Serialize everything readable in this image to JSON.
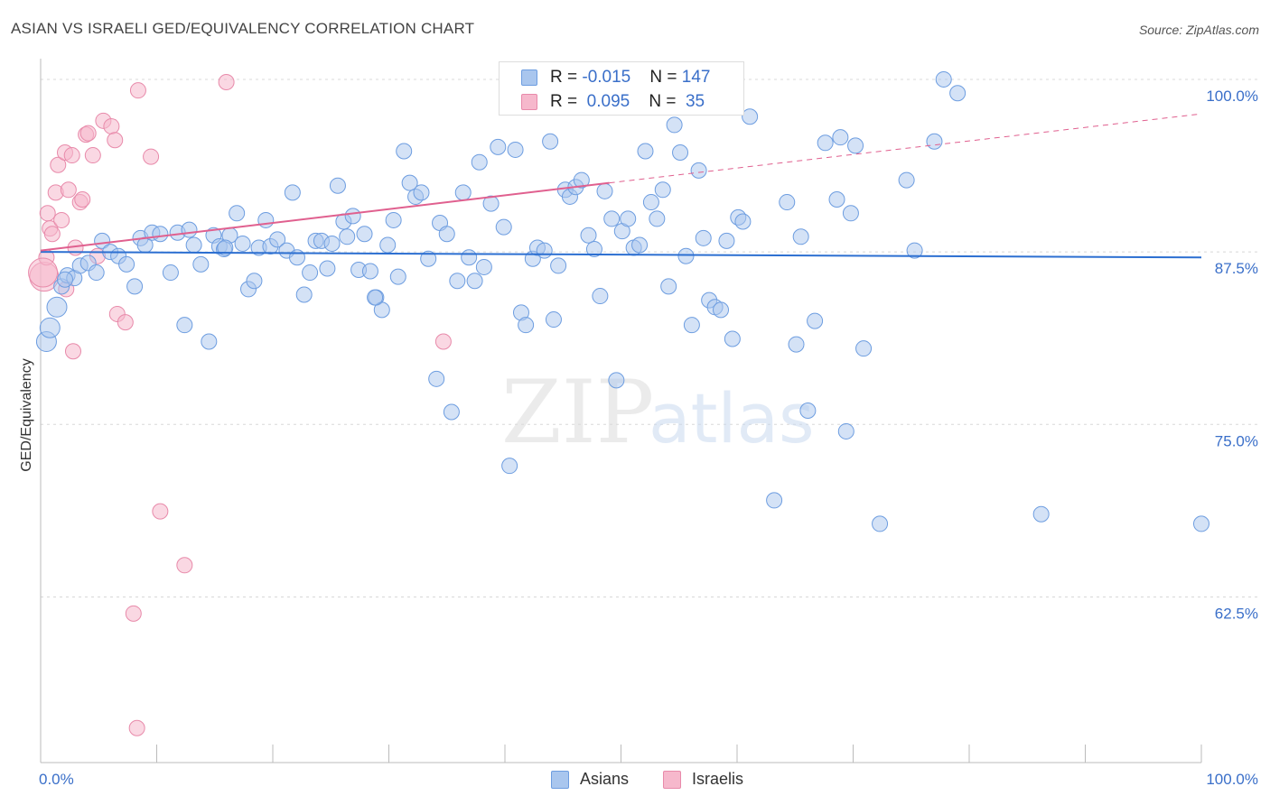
{
  "header": {
    "title": "ASIAN VS ISRAELI GED/EQUIVALENCY CORRELATION CHART",
    "source": "Source: ZipAtlas.com"
  },
  "legend_top": {
    "rows": [
      {
        "r_label": "R = ",
        "r_value": "-0.015",
        "n_label": "N = ",
        "n_value": "147"
      },
      {
        "r_label": "R = ",
        "r_value": " 0.095",
        "n_label": "N = ",
        "n_value": " 35"
      }
    ]
  },
  "watermark": {
    "zip": "ZIP",
    "atlas": "atlas"
  },
  "colors": {
    "asian_fill": "#a9c6ee",
    "asian_stroke": "#6d9de0",
    "asian_line": "#2c6fd1",
    "israeli_fill": "#f6b8cc",
    "israeli_stroke": "#e88aaa",
    "israeli_line": "#e0608f",
    "axis_label": "#3a6fc9",
    "grid": "#d8d8d8"
  },
  "chart_data": {
    "type": "scatter",
    "title": "ASIAN VS ISRAELI GED/EQUIVALENCY CORRELATION CHART",
    "xlabel": "",
    "ylabel": "GED/Equivalency",
    "xlim": [
      0,
      100
    ],
    "ylim": [
      50.5,
      101.5
    ],
    "x_tick_labels": [
      "0.0%",
      "100.0%"
    ],
    "y_ticks": [
      62.5,
      75.0,
      87.5,
      100.0
    ],
    "y_tick_labels": [
      "62.5%",
      "75.0%",
      "87.5%",
      "100.0%"
    ],
    "grid": true,
    "legend_placement": "bottom",
    "series": [
      {
        "name": "Asians",
        "r": -0.015,
        "n": 147,
        "trend": {
          "x0": 0,
          "y0": 87.5,
          "x1": 100,
          "y1": 87.1
        },
        "points": [
          [
            0.5,
            81.0
          ],
          [
            0.8,
            82.0
          ],
          [
            1.4,
            83.5
          ],
          [
            1.8,
            85.0
          ],
          [
            2.3,
            85.8
          ],
          [
            2.9,
            85.6
          ],
          [
            3.4,
            86.5
          ],
          [
            4.1,
            86.7
          ],
          [
            4.8,
            86.0
          ],
          [
            5.3,
            88.3
          ],
          [
            6.0,
            87.5
          ],
          [
            6.7,
            87.2
          ],
          [
            7.4,
            86.6
          ],
          [
            8.1,
            85.0
          ],
          [
            8.6,
            88.5
          ],
          [
            9.0,
            88.0
          ],
          [
            9.6,
            88.9
          ],
          [
            10.3,
            88.8
          ],
          [
            11.2,
            86.0
          ],
          [
            11.8,
            88.9
          ],
          [
            12.4,
            82.2
          ],
          [
            12.8,
            89.1
          ],
          [
            13.2,
            88.0
          ],
          [
            13.8,
            86.6
          ],
          [
            14.5,
            81.0
          ],
          [
            14.9,
            88.7
          ],
          [
            15.4,
            87.9
          ],
          [
            15.8,
            87.7
          ],
          [
            16.3,
            88.7
          ],
          [
            16.9,
            90.3
          ],
          [
            17.4,
            88.1
          ],
          [
            17.9,
            84.8
          ],
          [
            18.4,
            85.4
          ],
          [
            18.8,
            87.8
          ],
          [
            19.4,
            89.8
          ],
          [
            19.8,
            87.9
          ],
          [
            20.4,
            88.4
          ],
          [
            21.2,
            87.6
          ],
          [
            21.7,
            91.8
          ],
          [
            22.1,
            87.1
          ],
          [
            22.7,
            84.4
          ],
          [
            23.2,
            86.0
          ],
          [
            23.7,
            88.3
          ],
          [
            24.2,
            88.3
          ],
          [
            24.7,
            86.3
          ],
          [
            25.1,
            88.1
          ],
          [
            25.6,
            92.3
          ],
          [
            26.1,
            89.7
          ],
          [
            26.4,
            88.6
          ],
          [
            26.9,
            90.1
          ],
          [
            27.4,
            86.2
          ],
          [
            27.9,
            88.8
          ],
          [
            28.4,
            86.1
          ],
          [
            28.9,
            84.2
          ],
          [
            29.4,
            83.3
          ],
          [
            29.9,
            88.0
          ],
          [
            30.4,
            89.8
          ],
          [
            30.8,
            85.7
          ],
          [
            31.3,
            94.8
          ],
          [
            31.8,
            92.5
          ],
          [
            32.3,
            91.5
          ],
          [
            32.8,
            91.8
          ],
          [
            33.4,
            87.0
          ],
          [
            34.1,
            78.3
          ],
          [
            34.4,
            89.6
          ],
          [
            35.0,
            88.8
          ],
          [
            35.4,
            75.9
          ],
          [
            35.9,
            85.4
          ],
          [
            36.4,
            91.8
          ],
          [
            36.9,
            87.1
          ],
          [
            37.4,
            85.4
          ],
          [
            37.8,
            94.0
          ],
          [
            38.2,
            86.4
          ],
          [
            38.8,
            91.0
          ],
          [
            39.4,
            95.1
          ],
          [
            39.9,
            89.3
          ],
          [
            40.4,
            72.0
          ],
          [
            40.9,
            94.9
          ],
          [
            41.4,
            83.1
          ],
          [
            41.8,
            82.2
          ],
          [
            42.4,
            87.0
          ],
          [
            42.8,
            87.8
          ],
          [
            43.4,
            87.6
          ],
          [
            43.9,
            95.5
          ],
          [
            44.2,
            82.6
          ],
          [
            44.6,
            86.5
          ],
          [
            45.2,
            92.0
          ],
          [
            45.6,
            91.5
          ],
          [
            46.1,
            92.2
          ],
          [
            46.6,
            92.7
          ],
          [
            47.2,
            88.7
          ],
          [
            47.7,
            87.7
          ],
          [
            48.2,
            84.3
          ],
          [
            48.6,
            91.9
          ],
          [
            49.2,
            89.9
          ],
          [
            49.6,
            78.2
          ],
          [
            50.1,
            89.0
          ],
          [
            50.6,
            89.9
          ],
          [
            51.1,
            87.8
          ],
          [
            51.6,
            88.0
          ],
          [
            52.1,
            94.8
          ],
          [
            52.6,
            91.1
          ],
          [
            53.1,
            89.9
          ],
          [
            53.6,
            92.0
          ],
          [
            54.1,
            85.0
          ],
          [
            54.6,
            96.7
          ],
          [
            55.1,
            94.7
          ],
          [
            55.6,
            87.2
          ],
          [
            56.1,
            82.2
          ],
          [
            56.7,
            93.4
          ],
          [
            57.1,
            88.5
          ],
          [
            57.6,
            84.0
          ],
          [
            58.1,
            83.5
          ],
          [
            58.6,
            83.3
          ],
          [
            59.1,
            88.3
          ],
          [
            59.6,
            81.2
          ],
          [
            60.1,
            90.0
          ],
          [
            60.5,
            89.7
          ],
          [
            61.1,
            97.3
          ],
          [
            63.2,
            69.5
          ],
          [
            64.3,
            91.1
          ],
          [
            65.1,
            80.8
          ],
          [
            65.5,
            88.6
          ],
          [
            66.1,
            76.0
          ],
          [
            66.7,
            82.5
          ],
          [
            67.6,
            95.4
          ],
          [
            68.6,
            91.3
          ],
          [
            68.9,
            95.8
          ],
          [
            69.4,
            74.5
          ],
          [
            69.8,
            90.3
          ],
          [
            70.2,
            95.2
          ],
          [
            70.9,
            80.5
          ],
          [
            72.3,
            67.8
          ],
          [
            74.6,
            92.7
          ],
          [
            75.3,
            87.6
          ],
          [
            77.0,
            95.5
          ],
          [
            77.8,
            100.0
          ],
          [
            79.0,
            99.0
          ],
          [
            86.2,
            68.5
          ],
          [
            100.0,
            67.8
          ],
          [
            2.1,
            85.5
          ],
          [
            15.9,
            87.8
          ],
          [
            28.8,
            84.2
          ]
        ]
      },
      {
        "name": "Israelis",
        "r": 0.095,
        "n": 35,
        "trend": {
          "x0": 0,
          "y0": 87.6,
          "x1": 49,
          "y1": 92.5,
          "x_ext": 100,
          "y_ext": 97.5
        },
        "points": [
          [
            0.3,
            85.7
          ],
          [
            0.5,
            87.1
          ],
          [
            0.6,
            90.3
          ],
          [
            0.8,
            89.2
          ],
          [
            1.0,
            88.8
          ],
          [
            1.3,
            91.8
          ],
          [
            1.5,
            93.8
          ],
          [
            1.8,
            89.8
          ],
          [
            2.1,
            94.7
          ],
          [
            2.4,
            92.0
          ],
          [
            2.7,
            94.5
          ],
          [
            2.8,
            80.3
          ],
          [
            3.0,
            87.8
          ],
          [
            3.4,
            91.1
          ],
          [
            3.6,
            91.3
          ],
          [
            3.9,
            96.0
          ],
          [
            4.1,
            96.1
          ],
          [
            4.5,
            94.5
          ],
          [
            4.9,
            87.2
          ],
          [
            5.4,
            97.0
          ],
          [
            6.1,
            96.6
          ],
          [
            6.4,
            95.6
          ],
          [
            6.6,
            83.0
          ],
          [
            7.3,
            82.4
          ],
          [
            8.0,
            61.3
          ],
          [
            8.3,
            53.0
          ],
          [
            8.4,
            99.2
          ],
          [
            9.5,
            94.4
          ],
          [
            10.3,
            68.7
          ],
          [
            12.4,
            64.8
          ],
          [
            16.0,
            99.8
          ],
          [
            2.2,
            84.8
          ],
          [
            34.7,
            81.0
          ],
          [
            47.1,
            100.1
          ],
          [
            0.2,
            86.0
          ]
        ]
      }
    ]
  }
}
